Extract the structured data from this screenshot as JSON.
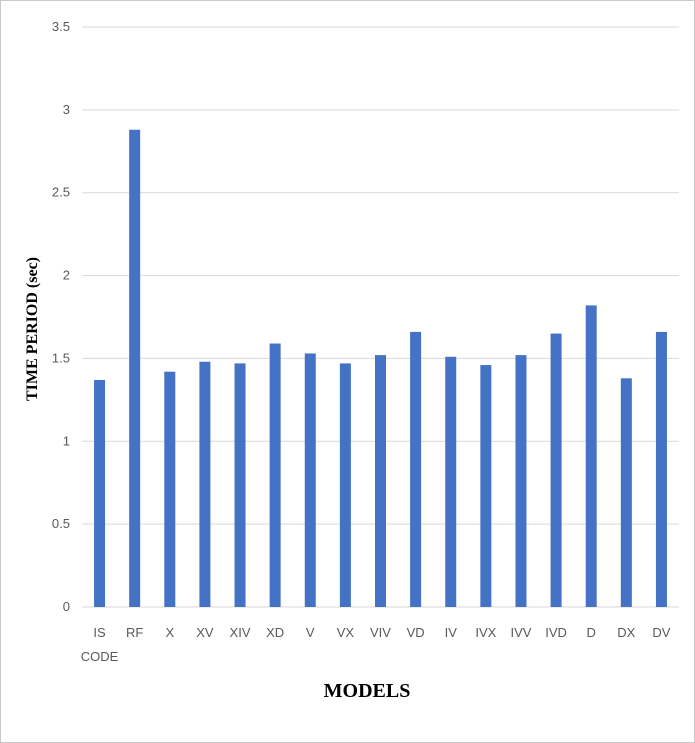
{
  "chart_data": {
    "type": "bar",
    "xlabel": "MODELS",
    "ylabel": "TIME  PERIOD (sec)",
    "ylim": [
      0,
      3.5
    ],
    "yticks": [
      0,
      0.5,
      1,
      1.5,
      2,
      2.5,
      3,
      3.5
    ],
    "ytick_labels": [
      "0",
      "0.5",
      "1",
      "1.5",
      "2",
      "2.5",
      "3",
      "3.5"
    ],
    "grid": true,
    "legend": "none",
    "categories": [
      [
        "IS",
        "CODE"
      ],
      [
        "RF"
      ],
      [
        "X"
      ],
      [
        "XV"
      ],
      [
        "XIV"
      ],
      [
        "XD"
      ],
      [
        "V"
      ],
      [
        "VX"
      ],
      [
        "VIV"
      ],
      [
        "VD"
      ],
      [
        "IV"
      ],
      [
        "IVX"
      ],
      [
        "IVV"
      ],
      [
        "IVD"
      ],
      [
        "D"
      ],
      [
        "DX"
      ],
      [
        "DV"
      ]
    ],
    "values": [
      1.37,
      2.88,
      1.42,
      1.48,
      1.47,
      1.59,
      1.53,
      1.47,
      1.52,
      1.66,
      1.51,
      1.46,
      1.52,
      1.65,
      1.82,
      1.38,
      1.66
    ],
    "bar_color": "#4472C4",
    "grid_color": "#d9d9d9"
  }
}
